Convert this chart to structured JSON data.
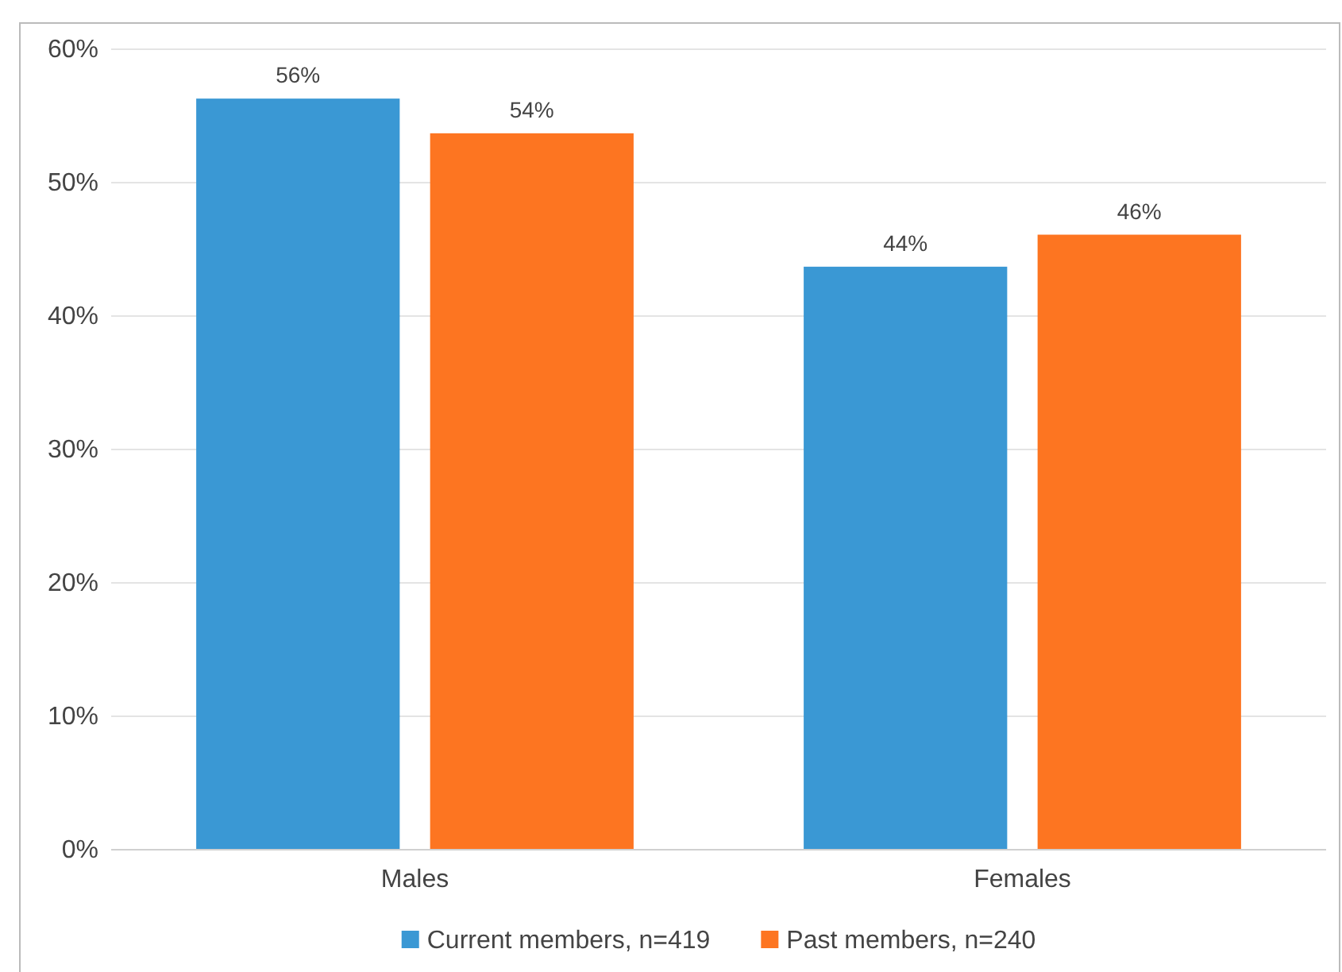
{
  "chart_data": {
    "type": "bar",
    "categories": [
      "Males",
      "Females"
    ],
    "series": [
      {
        "name": "Current members, n=419",
        "color": "#3a98d4",
        "values": [
          56.3,
          43.7
        ],
        "value_labels": [
          "56%",
          "44%"
        ]
      },
      {
        "name": "Past members, n=240",
        "color": "#fd7521",
        "values": [
          53.7,
          46.1
        ],
        "value_labels": [
          "54%",
          "46%"
        ]
      }
    ],
    "ylim": [
      0,
      60
    ],
    "yticks": [
      {
        "value": 0,
        "label": "0%"
      },
      {
        "value": 10,
        "label": "10%"
      },
      {
        "value": 20,
        "label": "20%"
      },
      {
        "value": 30,
        "label": "30%"
      },
      {
        "value": 40,
        "label": "40%"
      },
      {
        "value": 50,
        "label": "50%"
      },
      {
        "value": 60,
        "label": "60%"
      }
    ],
    "grid": "y",
    "legend": "bottom"
  }
}
